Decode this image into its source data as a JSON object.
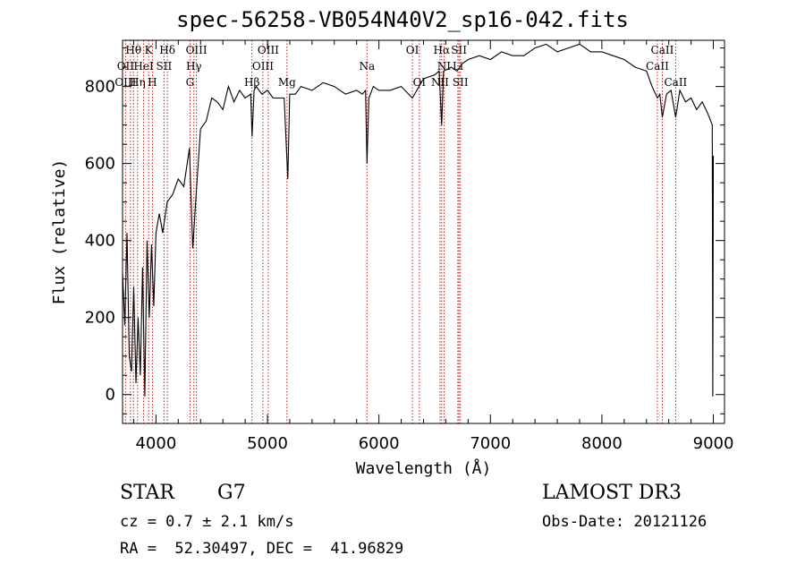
{
  "chart_data": {
    "type": "line",
    "title": "spec-56258-VB054N40V2_sp16-042.fits",
    "xlabel": "Wavelength (Å)",
    "ylabel": "Flux (relative)",
    "xlim": [
      3700,
      9100
    ],
    "ylim": [
      -75,
      920
    ],
    "x_ticks": [
      4000,
      5000,
      6000,
      7000,
      8000,
      9000
    ],
    "y_ticks": [
      0,
      200,
      400,
      600,
      800
    ],
    "x_tick_labels": [
      "4000",
      "5000",
      "6000",
      "7000",
      "8000",
      "9000"
    ],
    "y_tick_labels": [
      "0",
      "200",
      "400",
      "600",
      "800"
    ],
    "series": [
      {
        "x": [
          3700,
          3720,
          3740,
          3760,
          3780,
          3800,
          3820,
          3840,
          3860,
          3880,
          3900,
          3920,
          3940,
          3960,
          3980,
          4000,
          4030,
          4060,
          4100,
          4150,
          4200,
          4250,
          4300,
          4330,
          4360,
          4400,
          4450,
          4500,
          4550,
          4600,
          4650,
          4700,
          4750,
          4800,
          4850,
          4862,
          4880,
          4900,
          4950,
          5000,
          5050,
          5100,
          5150,
          5170,
          5183,
          5200,
          5250,
          5300,
          5400,
          5500,
          5600,
          5700,
          5800,
          5850,
          5880,
          5893,
          5910,
          5950,
          6000,
          6100,
          6200,
          6300,
          6400,
          6500,
          6540,
          6563,
          6580,
          6650,
          6700,
          6750,
          6800,
          6900,
          7000,
          7100,
          7200,
          7300,
          7400,
          7500,
          7600,
          7700,
          7800,
          7900,
          8000,
          8100,
          8200,
          8300,
          8400,
          8450,
          8498,
          8520,
          8542,
          8580,
          8620,
          8662,
          8700,
          8750,
          8800,
          8850,
          8900,
          8950,
          8990,
          8995,
          9000
        ],
        "y": [
          320,
          180,
          420,
          100,
          60,
          280,
          30,
          200,
          50,
          330,
          -5,
          400,
          200,
          390,
          230,
          420,
          470,
          420,
          500,
          520,
          560,
          540,
          640,
          380,
          520,
          690,
          710,
          770,
          760,
          740,
          800,
          760,
          790,
          770,
          780,
          670,
          790,
          800,
          780,
          790,
          770,
          770,
          770,
          640,
          560,
          780,
          780,
          800,
          790,
          810,
          800,
          780,
          790,
          780,
          790,
          600,
          770,
          800,
          790,
          790,
          800,
          770,
          820,
          830,
          840,
          700,
          840,
          850,
          840,
          860,
          870,
          880,
          870,
          890,
          880,
          880,
          900,
          910,
          890,
          900,
          910,
          890,
          890,
          880,
          870,
          850,
          840,
          800,
          770,
          780,
          720,
          780,
          790,
          720,
          790,
          760,
          770,
          740,
          760,
          730,
          700,
          -5,
          620
        ]
      }
    ],
    "spectral_lines": [
      {
        "label": "Hθ",
        "x": 3798,
        "row": 0
      },
      {
        "label": "K",
        "x": 3934,
        "row": 0
      },
      {
        "label": "Hδ",
        "x": 4102,
        "row": 0
      },
      {
        "label": "OIII",
        "x": 4363,
        "row": 0
      },
      {
        "label": "OIII",
        "x": 5007,
        "row": 0
      },
      {
        "label": "OI",
        "x": 6300,
        "row": 0
      },
      {
        "label": "Hα",
        "x": 6563,
        "row": 0
      },
      {
        "label": "SII",
        "x": 6718,
        "row": 0
      },
      {
        "label": "CaII",
        "x": 8542,
        "row": 0
      },
      {
        "label": "OII",
        "x": 3727,
        "row": 1
      },
      {
        "label": "HeI",
        "x": 3889,
        "row": 1
      },
      {
        "label": "SII",
        "x": 4072,
        "row": 1
      },
      {
        "label": "Hγ",
        "x": 4340,
        "row": 1
      },
      {
        "label": "OIII",
        "x": 4959,
        "row": 1
      },
      {
        "label": "Na",
        "x": 5893,
        "row": 1
      },
      {
        "label": "NI",
        "x": 6584,
        "row": 1
      },
      {
        "label": "Li",
        "x": 6708,
        "row": 1
      },
      {
        "label": "CaII",
        "x": 8498,
        "row": 1
      },
      {
        "label": "OIII",
        "x": 3727,
        "row": 2
      },
      {
        "label": "Hη",
        "x": 3835,
        "row": 2
      },
      {
        "label": "H",
        "x": 3968,
        "row": 2
      },
      {
        "label": "G",
        "x": 4305,
        "row": 2
      },
      {
        "label": "Hβ",
        "x": 4861,
        "row": 2
      },
      {
        "label": "Mg",
        "x": 5175,
        "row": 2
      },
      {
        "label": "OI",
        "x": 6363,
        "row": 2
      },
      {
        "label": "NII",
        "x": 6548,
        "row": 2
      },
      {
        "label": "SII",
        "x": 6731,
        "row": 2
      },
      {
        "label": "CaII",
        "x": 8662,
        "row": 2
      }
    ],
    "line_positions": [
      3727,
      3771,
      3798,
      3835,
      3889,
      3934,
      3968,
      4072,
      4102,
      4305,
      4340,
      4363,
      4861,
      4959,
      5007,
      5175,
      5893,
      6300,
      6363,
      6548,
      6563,
      6584,
      6708,
      6718,
      6731,
      8498,
      8542,
      8662
    ],
    "line_color": "#cc0000",
    "grid": false
  },
  "info": {
    "object_type": "STAR",
    "subclass": "G7",
    "survey": "LAMOST DR3",
    "redshift": "cz = 0.7 ± 2.1 km/s",
    "obs_date": "Obs-Date: 20121126",
    "coords": "RA =  52.30497, DEC =  41.96829"
  }
}
